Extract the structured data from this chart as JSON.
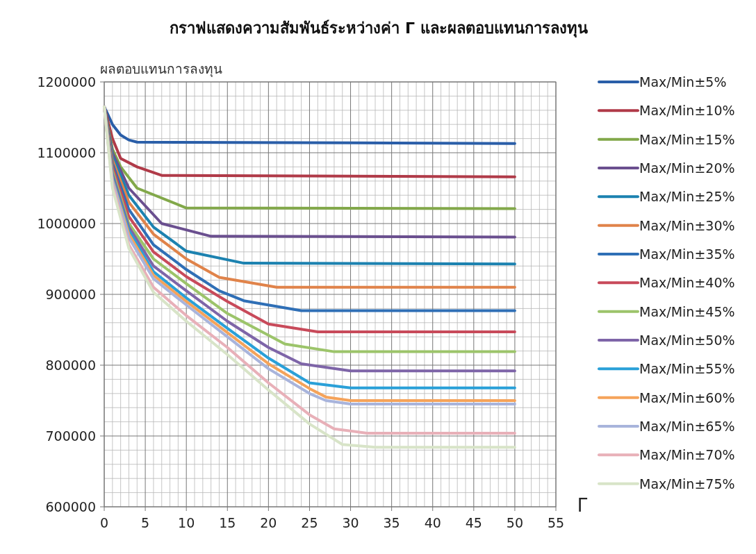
{
  "chart_data": {
    "type": "line",
    "title": "กราฟแสดงความสัมพันธ์ระหว่างค่า Γ และผลตอบแทนการลงทุน",
    "ylabel": "ผลตอบแทนการลงทุน",
    "xlabel": "Γ",
    "xlim": [
      0,
      55
    ],
    "xticks": [
      0,
      5,
      10,
      15,
      20,
      25,
      30,
      35,
      40,
      45,
      50,
      55
    ],
    "ylim": [
      600000,
      1200000
    ],
    "yticks": [
      600000,
      700000,
      800000,
      900000,
      1000000,
      1100000,
      1200000
    ],
    "grid": true,
    "legend": "right",
    "marker": "none",
    "line_style": "solid",
    "series": [
      {
        "name": "Max/Min±5%",
        "color": "#2a5ea8",
        "x": [
          0,
          1,
          2,
          3,
          4,
          50
        ],
        "values": [
          1165000,
          1140000,
          1125000,
          1118000,
          1115000,
          1113000
        ]
      },
      {
        "name": "Max/Min±10%",
        "color": "#b03a48",
        "x": [
          0,
          1,
          2,
          4,
          7,
          50
        ],
        "values": [
          1165000,
          1120000,
          1092000,
          1080000,
          1068000,
          1066000
        ]
      },
      {
        "name": "Max/Min±15%",
        "color": "#82a84a",
        "x": [
          0,
          1,
          2,
          4,
          10,
          50
        ],
        "values": [
          1165000,
          1105000,
          1080000,
          1050000,
          1022000,
          1021000
        ]
      },
      {
        "name": "Max/Min±20%",
        "color": "#6a4f8f",
        "x": [
          0,
          1,
          3,
          5,
          7,
          13,
          50
        ],
        "values": [
          1165000,
          1100000,
          1050000,
          1025000,
          1000000,
          982000,
          981000
        ]
      },
      {
        "name": "Max/Min±25%",
        "color": "#1c82b0",
        "x": [
          0,
          1,
          3,
          6,
          10,
          17,
          50
        ],
        "values": [
          1165000,
          1095000,
          1040000,
          995000,
          961000,
          944000,
          943000
        ]
      },
      {
        "name": "Max/Min±30%",
        "color": "#e0834a",
        "x": [
          0,
          1,
          3,
          6,
          10,
          14,
          21,
          50
        ],
        "values": [
          1165000,
          1090000,
          1030000,
          985000,
          950000,
          924000,
          910000,
          910000
        ]
      },
      {
        "name": "Max/Min±35%",
        "color": "#2f6fb6",
        "x": [
          0,
          1,
          3,
          6,
          10,
          14,
          17,
          24,
          50
        ],
        "values": [
          1165000,
          1085000,
          1020000,
          970000,
          935000,
          905000,
          891000,
          877000,
          877000
        ]
      },
      {
        "name": "Max/Min±40%",
        "color": "#c84a5a",
        "x": [
          0,
          1,
          3,
          6,
          10,
          15,
          20,
          26,
          50
        ],
        "values": [
          1165000,
          1080000,
          1010000,
          960000,
          925000,
          890000,
          858000,
          847000,
          847000
        ]
      },
      {
        "name": "Max/Min±45%",
        "color": "#9cc46a",
        "x": [
          0,
          1,
          3,
          6,
          10,
          15,
          22,
          28,
          50
        ],
        "values": [
          1165000,
          1075000,
          1000000,
          950000,
          915000,
          873000,
          830000,
          819000,
          819000
        ]
      },
      {
        "name": "Max/Min±50%",
        "color": "#7e65a8",
        "x": [
          0,
          1,
          3,
          6,
          10,
          15,
          20,
          24,
          30,
          50
        ],
        "values": [
          1165000,
          1070000,
          995000,
          940000,
          905000,
          862000,
          825000,
          802000,
          792000,
          792000
        ]
      },
      {
        "name": "Max/Min±55%",
        "color": "#2aa0d8",
        "x": [
          0,
          1,
          3,
          6,
          10,
          15,
          20,
          25,
          30,
          50
        ],
        "values": [
          1165000,
          1065000,
          990000,
          932000,
          895000,
          852000,
          810000,
          775000,
          768000,
          768000
        ]
      },
      {
        "name": "Max/Min±60%",
        "color": "#f5a35a",
        "x": [
          0,
          1,
          3,
          6,
          10,
          15,
          20,
          25,
          27,
          30,
          50
        ],
        "values": [
          1165000,
          1062000,
          985000,
          927000,
          890000,
          846000,
          802000,
          767000,
          755000,
          750000,
          750000
        ]
      },
      {
        "name": "Max/Min±65%",
        "color": "#a8b4dc",
        "x": [
          0,
          1,
          3,
          6,
          10,
          15,
          20,
          25,
          27,
          30,
          50
        ],
        "values": [
          1165000,
          1060000,
          980000,
          922000,
          885000,
          840000,
          795000,
          760000,
          750000,
          745000,
          745000
        ]
      },
      {
        "name": "Max/Min±70%",
        "color": "#e8b0b8",
        "x": [
          0,
          1,
          3,
          6,
          10,
          15,
          20,
          25,
          28,
          32,
          50
        ],
        "values": [
          1165000,
          1055000,
          970000,
          910000,
          870000,
          825000,
          775000,
          730000,
          710000,
          704000,
          704000
        ]
      },
      {
        "name": "Max/Min±75%",
        "color": "#d8e4c8",
        "x": [
          0,
          1,
          3,
          6,
          10,
          15,
          20,
          25,
          29,
          33,
          50
        ],
        "values": [
          1165000,
          1050000,
          965000,
          903000,
          862000,
          815000,
          765000,
          717000,
          688000,
          684000,
          684000
        ]
      }
    ]
  }
}
